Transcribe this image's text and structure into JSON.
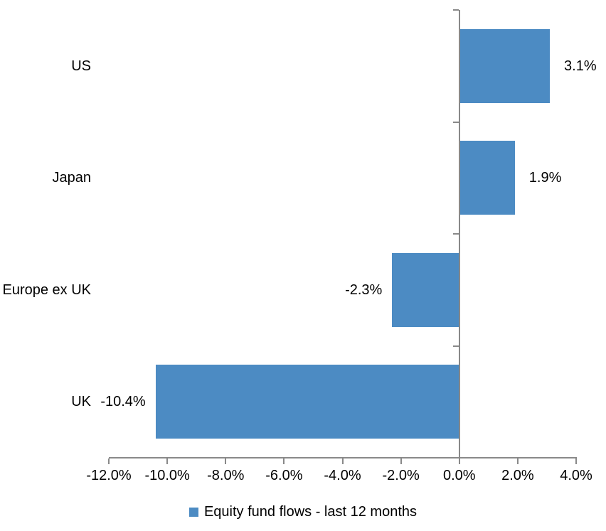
{
  "chart_data": {
    "type": "bar",
    "orientation": "horizontal",
    "title": "",
    "categories": [
      "US",
      "Japan",
      "Europe ex UK",
      "UK"
    ],
    "series": [
      {
        "name": "Equity fund flows - last 12 months",
        "values": [
          3.1,
          1.9,
          -2.3,
          -10.4
        ],
        "value_labels": [
          "3.1%",
          "1.9%",
          "-2.3%",
          "-10.4%"
        ]
      }
    ],
    "xlabel": "",
    "ylabel": "",
    "xlim": [
      -12,
      4
    ],
    "x_tick_step": 2,
    "x_tick_values": [
      -12,
      -10,
      -8,
      -6,
      -4,
      -2,
      0,
      2,
      4
    ],
    "x_tick_labels": [
      "-12.0%",
      "-10.0%",
      "-8.0%",
      "-6.0%",
      "-4.0%",
      "-2.0%",
      "0.0%",
      "2.0%",
      "4.0%"
    ],
    "grid": false,
    "legend_position": "bottom",
    "colors": {
      "bar": "#4C8BC3",
      "axis": "#898989",
      "text": "#000000",
      "background": "#ffffff"
    }
  },
  "legend": {
    "label": "Equity fund flows - last 12 months"
  }
}
